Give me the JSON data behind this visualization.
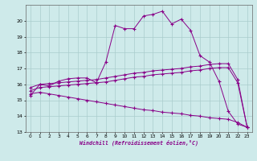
{
  "xlabel": "Windchill (Refroidissement éolien,°C)",
  "bg_color": "#ceeaea",
  "grid_color": "#aacccc",
  "line_color": "#880088",
  "xlim": [
    -0.5,
    23.5
  ],
  "ylim": [
    13,
    21
  ],
  "yticks": [
    13,
    14,
    15,
    16,
    17,
    18,
    19,
    20
  ],
  "xticks": [
    0,
    1,
    2,
    3,
    4,
    5,
    6,
    7,
    8,
    9,
    10,
    11,
    12,
    13,
    14,
    15,
    16,
    17,
    18,
    19,
    20,
    21,
    22,
    23
  ],
  "series1_x": [
    0,
    1,
    2,
    3,
    4,
    5,
    6,
    7,
    8,
    9,
    10,
    11,
    12,
    13,
    14,
    15,
    16,
    17,
    18,
    19,
    20,
    21,
    22,
    23
  ],
  "series1_y": [
    15.3,
    16.0,
    15.9,
    16.2,
    16.35,
    16.4,
    16.4,
    16.1,
    17.4,
    19.7,
    19.5,
    19.5,
    20.3,
    20.4,
    20.6,
    19.8,
    20.1,
    19.4,
    17.8,
    17.4,
    16.2,
    14.3,
    13.5,
    13.3
  ],
  "series2_x": [
    0,
    1,
    2,
    3,
    4,
    5,
    6,
    7,
    8,
    9,
    10,
    11,
    12,
    13,
    14,
    15,
    16,
    17,
    18,
    19,
    20,
    21,
    22,
    23
  ],
  "series2_y": [
    15.8,
    16.0,
    16.05,
    16.1,
    16.15,
    16.2,
    16.25,
    16.3,
    16.4,
    16.5,
    16.6,
    16.7,
    16.75,
    16.85,
    16.9,
    16.95,
    17.0,
    17.1,
    17.15,
    17.25,
    17.3,
    17.3,
    16.3,
    13.3
  ],
  "series3_x": [
    0,
    1,
    2,
    3,
    4,
    5,
    6,
    7,
    8,
    9,
    10,
    11,
    12,
    13,
    14,
    15,
    16,
    17,
    18,
    19,
    20,
    21,
    22,
    23
  ],
  "series3_y": [
    15.6,
    15.8,
    15.85,
    15.9,
    15.95,
    16.0,
    16.05,
    16.1,
    16.15,
    16.25,
    16.35,
    16.45,
    16.5,
    16.6,
    16.65,
    16.7,
    16.75,
    16.85,
    16.9,
    17.0,
    17.05,
    17.05,
    16.1,
    13.3
  ],
  "series4_x": [
    0,
    1,
    2,
    3,
    4,
    5,
    6,
    7,
    8,
    9,
    10,
    11,
    12,
    13,
    14,
    15,
    16,
    17,
    18,
    19,
    20,
    21,
    22,
    23
  ],
  "series4_y": [
    15.4,
    15.5,
    15.4,
    15.3,
    15.2,
    15.1,
    15.0,
    14.9,
    14.8,
    14.7,
    14.6,
    14.5,
    14.4,
    14.35,
    14.25,
    14.2,
    14.15,
    14.05,
    14.0,
    13.9,
    13.85,
    13.8,
    13.6,
    13.3
  ]
}
